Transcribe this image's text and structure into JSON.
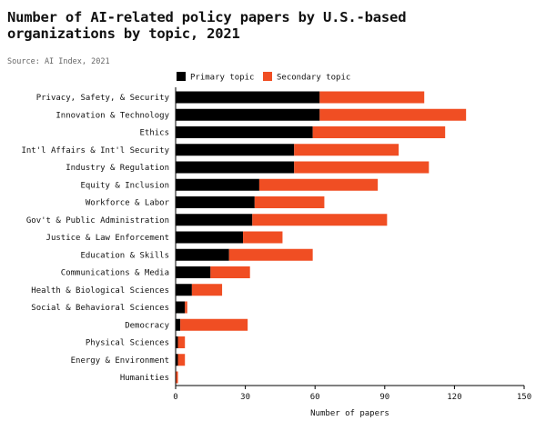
{
  "header": {
    "title": "Number of AI-related policy papers by U.S.-based organizations by topic, 2021",
    "source": "Source: AI Index, 2021"
  },
  "chart_data": {
    "type": "bar",
    "orientation": "horizontal",
    "stacked": true,
    "title": "Number of AI-related policy papers by U.S.-based organizations by topic, 2021",
    "xlabel": "Number of papers",
    "ylabel": "",
    "xlim": [
      0,
      150
    ],
    "xticks": [
      0,
      30,
      60,
      90,
      120,
      150
    ],
    "grid": false,
    "legend": "top",
    "categories": [
      "Privacy, Safety, & Security",
      "Innovation & Technology",
      "Ethics",
      "Int'l Affairs & Int'l Security",
      "Industry & Regulation",
      "Equity & Inclusion",
      "Workforce & Labor",
      "Gov't & Public Administration",
      "Justice & Law Enforcement",
      "Education & Skills",
      "Communications & Media",
      "Health & Biological Sciences",
      "Social & Behavioral Sciences",
      "Democracy",
      "Physical Sciences",
      "Energy & Environment",
      "Humanities"
    ],
    "series": [
      {
        "name": "Primary topic",
        "color": "#000000",
        "values": [
          62,
          62,
          59,
          51,
          51,
          36,
          34,
          33,
          29,
          23,
          15,
          7,
          4,
          2,
          1,
          1,
          0
        ]
      },
      {
        "name": "Secondary topic",
        "color": "#f04e23",
        "values": [
          45,
          63,
          57,
          45,
          58,
          51,
          30,
          58,
          17,
          36,
          17,
          13,
          1,
          29,
          3,
          3,
          1
        ]
      }
    ]
  }
}
